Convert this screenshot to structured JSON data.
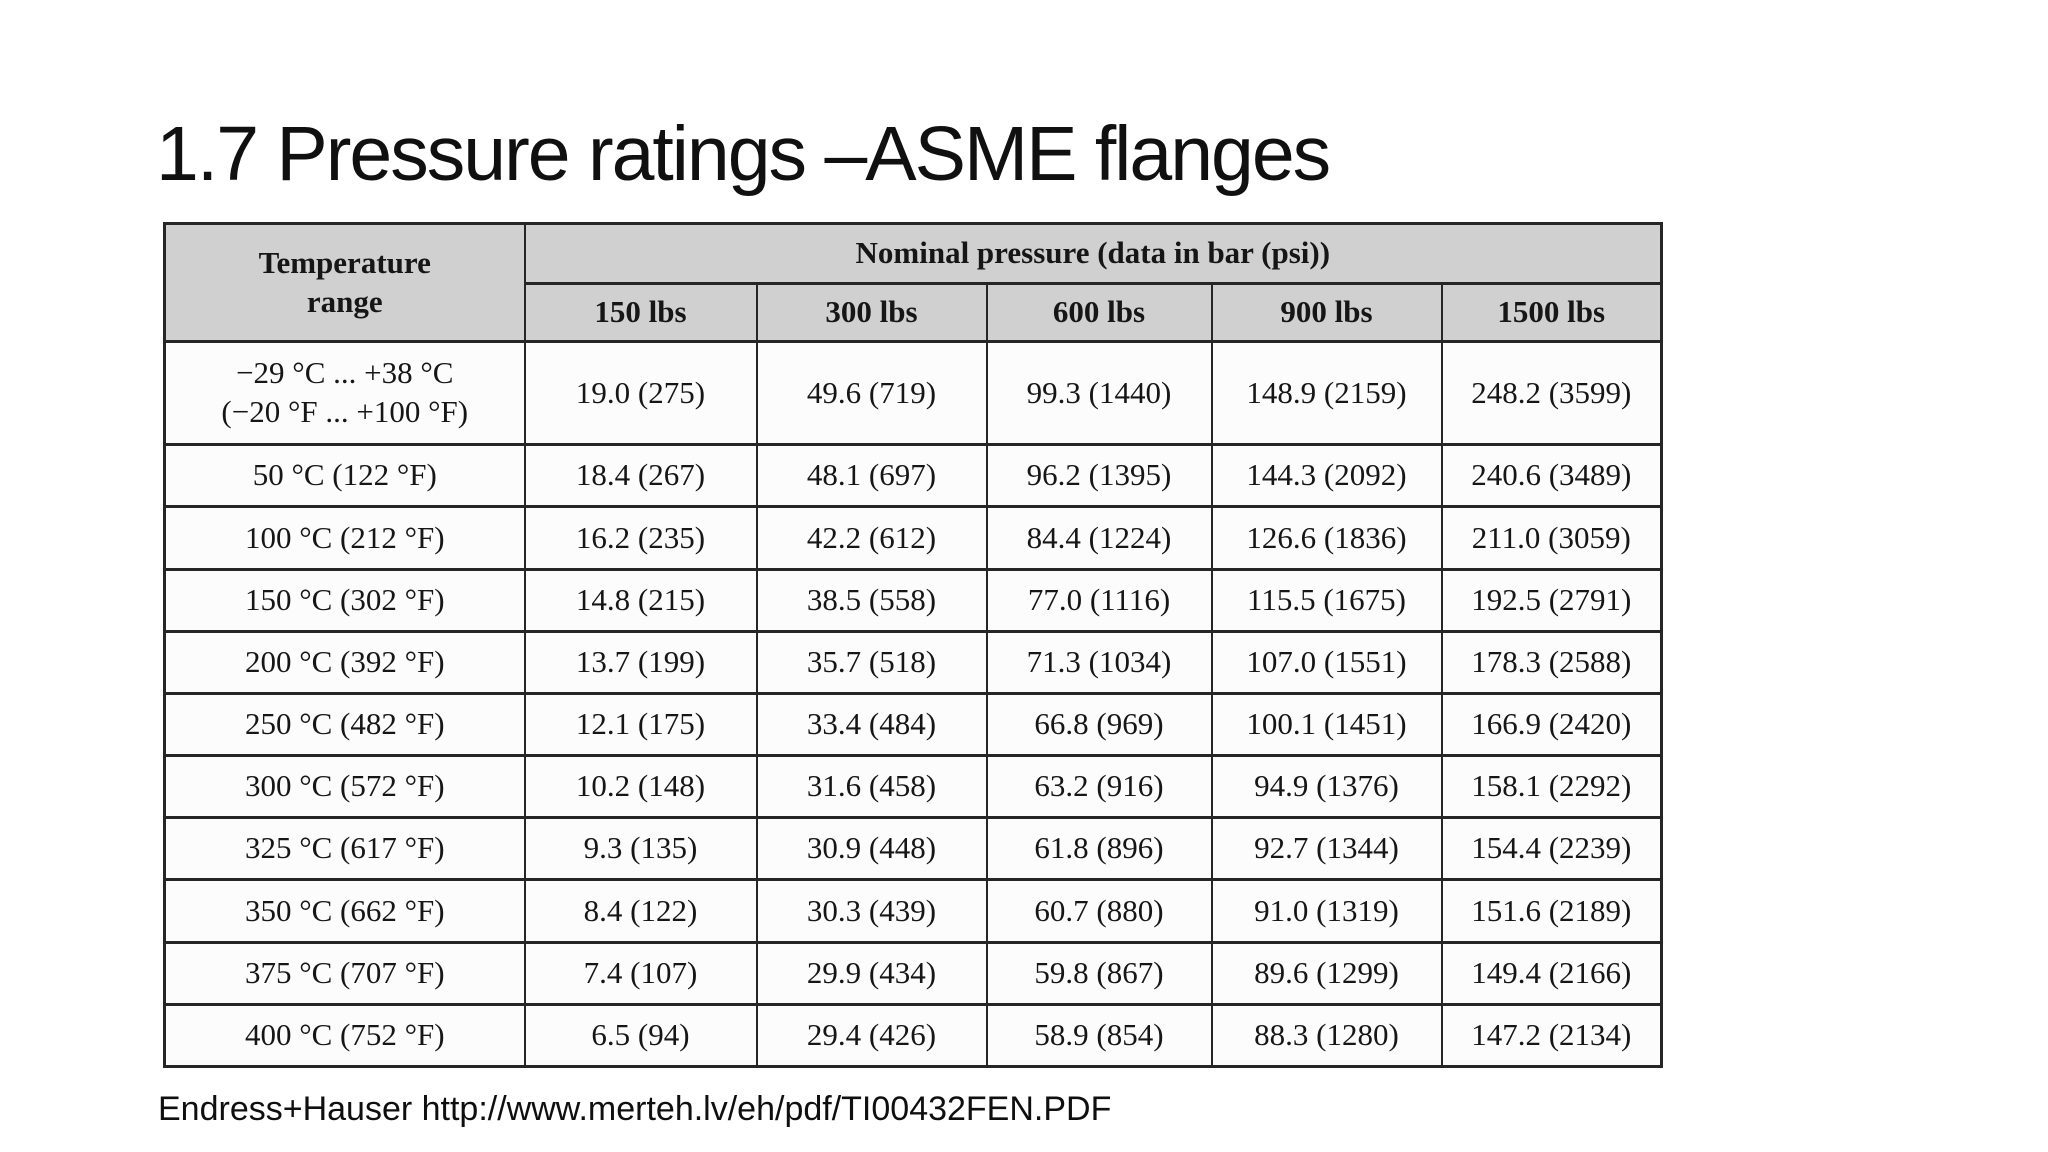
{
  "slide": {
    "title": "1.7 Pressure ratings –ASME flanges",
    "footer": "Endress+Hauser http://www.merteh.lv/eh/pdf/TI00432FEN.PDF"
  },
  "colors": {
    "header_bg": "#d0d0d0",
    "table_border": "#262626",
    "cell_bg": "#fcfcfc",
    "text": "#161616"
  },
  "table": {
    "temp_header": [
      "Temperature",
      "range"
    ],
    "group_header": "Nominal pressure (data in bar (psi))",
    "columns": [
      "150 lbs",
      "300 lbs",
      "600 lbs",
      "900 lbs",
      "1500 lbs"
    ],
    "rows": [
      {
        "temp": [
          "−29 °C ... +38 °C",
          "(−20 °F ... +100 °F)"
        ],
        "values": [
          "19.0 (275)",
          "49.6 (719)",
          "99.3 (1440)",
          "148.9 (2159)",
          "248.2 (3599)"
        ]
      },
      {
        "temp": [
          "50 °C (122 °F)"
        ],
        "values": [
          "18.4 (267)",
          "48.1 (697)",
          "96.2 (1395)",
          "144.3 (2092)",
          "240.6 (3489)"
        ]
      },
      {
        "temp": [
          "100 °C (212 °F)"
        ],
        "values": [
          "16.2 (235)",
          "42.2 (612)",
          "84.4 (1224)",
          "126.6 (1836)",
          "211.0 (3059)"
        ]
      },
      {
        "temp": [
          "150 °C (302 °F)"
        ],
        "values": [
          "14.8 (215)",
          "38.5 (558)",
          "77.0 (1116)",
          "115.5 (1675)",
          "192.5 (2791)"
        ]
      },
      {
        "temp": [
          "200 °C (392 °F)"
        ],
        "values": [
          "13.7 (199)",
          "35.7 (518)",
          "71.3 (1034)",
          "107.0 (1551)",
          "178.3 (2588)"
        ]
      },
      {
        "temp": [
          "250 °C (482 °F)"
        ],
        "values": [
          "12.1 (175)",
          "33.4 (484)",
          "66.8 (969)",
          "100.1 (1451)",
          "166.9 (2420)"
        ]
      },
      {
        "temp": [
          "300 °C (572 °F)"
        ],
        "values": [
          "10.2 (148)",
          "31.6 (458)",
          "63.2 (916)",
          "94.9 (1376)",
          "158.1 (2292)"
        ]
      },
      {
        "temp": [
          "325 °C (617 °F)"
        ],
        "values": [
          "9.3 (135)",
          "30.9 (448)",
          "61.8 (896)",
          "92.7 (1344)",
          "154.4 (2239)"
        ]
      },
      {
        "temp": [
          "350 °C (662 °F)"
        ],
        "values": [
          "8.4 (122)",
          "30.3 (439)",
          "60.7 (880)",
          "91.0 (1319)",
          "151.6 (2189)"
        ]
      },
      {
        "temp": [
          "375 °C (707 °F)"
        ],
        "values": [
          "7.4 (107)",
          "29.9 (434)",
          "59.8 (867)",
          "89.6 (1299)",
          "149.4 (2166)"
        ]
      },
      {
        "temp": [
          "400 °C (752 °F)"
        ],
        "values": [
          "6.5 (94)",
          "29.4 (426)",
          "58.9 (854)",
          "88.3 (1280)",
          "147.2 (2134)"
        ]
      }
    ]
  }
}
